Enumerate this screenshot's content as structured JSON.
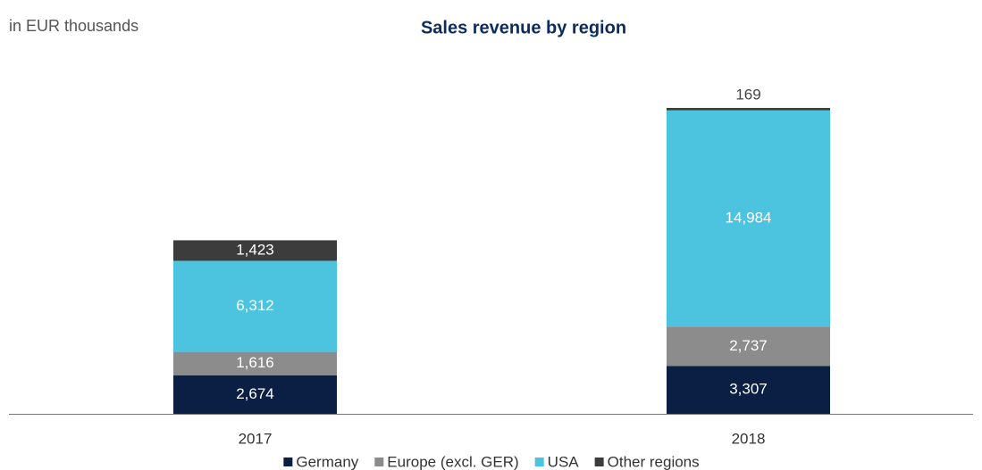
{
  "chart_data": {
    "type": "stacked_bar",
    "title": "Sales revenue by region",
    "subtitle": "in EUR thousands",
    "categories": [
      "2017",
      "2018"
    ],
    "series": [
      {
        "name": "Germany",
        "color": "#0b1f45",
        "values": [
          2674,
          3307
        ],
        "value_labels": [
          "2,674",
          "3,307"
        ]
      },
      {
        "name": "Europe (excl. GER)",
        "color": "#8c8c8c",
        "values": [
          1616,
          2737
        ],
        "value_labels": [
          "1,616",
          "2,737"
        ]
      },
      {
        "name": "USA",
        "color": "#4cc3df",
        "values": [
          6312,
          14984
        ],
        "value_labels": [
          "6,312",
          "14,984"
        ]
      },
      {
        "name": "Other regions",
        "color": "#3c3c3c",
        "values": [
          1423,
          169
        ],
        "value_labels": [
          "1,423",
          "169"
        ]
      }
    ]
  }
}
